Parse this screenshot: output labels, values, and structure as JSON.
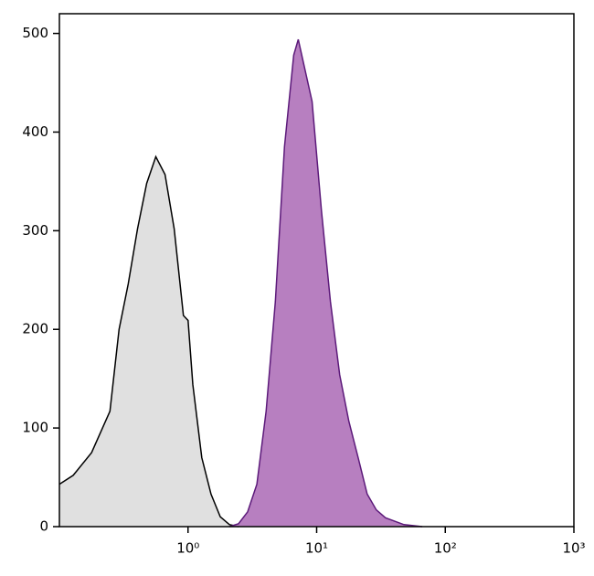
{
  "chart_data": {
    "type": "area",
    "xscale": "log",
    "xlim": [
      0.1,
      1000
    ],
    "ylim": [
      0,
      520
    ],
    "xticks": [
      {
        "value": 1,
        "label": "10⁰"
      },
      {
        "value": 10,
        "label": "10¹"
      },
      {
        "value": 100,
        "label": "10²"
      },
      {
        "value": 1000,
        "label": "10³"
      }
    ],
    "yticks": [
      0,
      100,
      200,
      300,
      400,
      500
    ],
    "series": [
      {
        "color": "#000000",
        "fill": "#e0e0e0",
        "x": [
          0.1,
          0.128,
          0.178,
          0.247,
          0.291,
          0.343,
          0.405,
          0.477,
          0.562,
          0.663,
          0.781,
          0.921,
          1,
          1.09,
          1.28,
          1.51,
          1.78,
          2.1,
          2.47
        ],
        "values": [
          43,
          52,
          75,
          117,
          200,
          246,
          302,
          348,
          375,
          357,
          302,
          214,
          209,
          144,
          70,
          33,
          10,
          2,
          0
        ]
      },
      {
        "color": "#5c1a7a",
        "fill": "#b77fc0",
        "x": [
          2.1,
          2.47,
          2.91,
          3.43,
          4.05,
          4.77,
          5.62,
          6.63,
          7.2,
          7.81,
          9.21,
          10.9,
          12.8,
          15.1,
          17.8,
          21.0,
          24.7,
          29.1,
          34.3,
          47.7,
          66.3
        ],
        "values": [
          0,
          3,
          15,
          43,
          117,
          228,
          385,
          478,
          494,
          473,
          431,
          320,
          228,
          154,
          107,
          70,
          33,
          17,
          9,
          2,
          0
        ]
      }
    ]
  }
}
